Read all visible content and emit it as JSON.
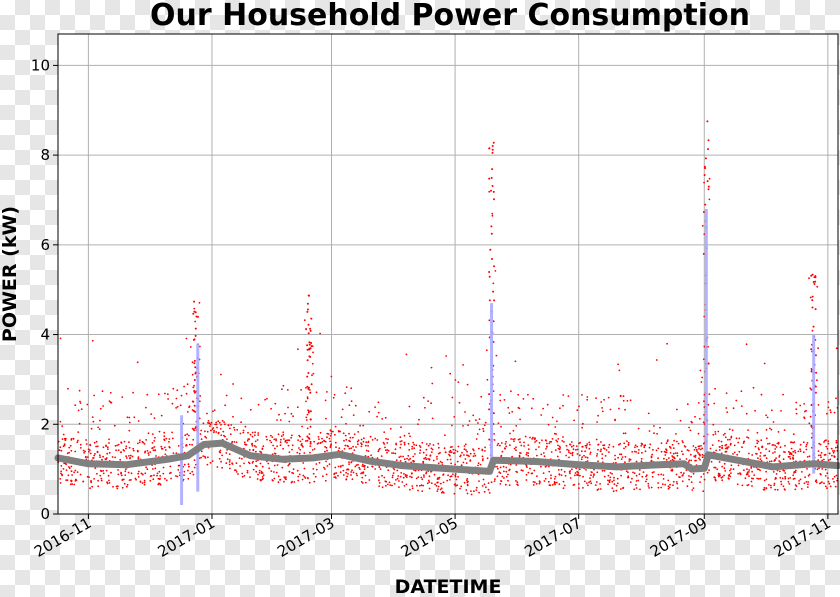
{
  "chart_data": {
    "type": "scatter",
    "title": "Our Household Power Consumption",
    "xlabel": "DATETIME",
    "ylabel": "POWER (kW)",
    "xlim": [
      "2016-10-17",
      "2017-11-06"
    ],
    "ylim": [
      0,
      10.7
    ],
    "grid": true,
    "xticks": [
      "2016-11",
      "2017-01",
      "2017-03",
      "2017-05",
      "2017-07",
      "2017-09",
      "2017-11"
    ],
    "xtick_dates": [
      "2016-11-01",
      "2017-01-01",
      "2017-03-01",
      "2017-05-01",
      "2017-07-01",
      "2017-09-01",
      "2017-11-01"
    ],
    "yticks": [
      0,
      2,
      4,
      6,
      8,
      10
    ],
    "series": [
      {
        "marker": "dots",
        "color": "#ff0000",
        "typical_band_kW": [
          0.5,
          2.0
        ],
        "spikes": [
          {
            "date": "2016-12-24",
            "peak_kW": 4.8
          },
          {
            "date": "2017-02-18",
            "peak_kW": 4.9
          },
          {
            "date": "2017-05-19",
            "peak_kW": 8.3
          },
          {
            "date": "2017-09-02",
            "peak_kW": 8.9
          },
          {
            "date": "2017-10-25",
            "peak_kW": 5.4
          }
        ]
      },
      {
        "marker": "line",
        "color": "#aaaaff",
        "segments": [
          {
            "date": "2016-12-17",
            "low_kW": 0.2,
            "high_kW": 2.2
          },
          {
            "date": "2016-12-25",
            "low_kW": 0.5,
            "high_kW": 3.8
          },
          {
            "date": "2017-05-19",
            "low_kW": 0.9,
            "high_kW": 4.7
          },
          {
            "date": "2017-09-02",
            "low_kW": 1.0,
            "high_kW": 6.8
          },
          {
            "date": "2017-10-25",
            "low_kW": 0.9,
            "high_kW": 4.0
          }
        ]
      },
      {
        "marker": "thick-line",
        "color": "#808080",
        "points": [
          [
            "2016-10-17",
            1.25
          ],
          [
            "2016-11-01",
            1.12
          ],
          [
            "2016-11-20",
            1.1
          ],
          [
            "2016-12-10",
            1.22
          ],
          [
            "2016-12-20",
            1.3
          ],
          [
            "2016-12-28",
            1.55
          ],
          [
            "2017-01-06",
            1.58
          ],
          [
            "2017-01-20",
            1.3
          ],
          [
            "2017-02-05",
            1.22
          ],
          [
            "2017-02-20",
            1.25
          ],
          [
            "2017-03-05",
            1.33
          ],
          [
            "2017-03-20",
            1.18
          ],
          [
            "2017-04-05",
            1.08
          ],
          [
            "2017-05-01",
            1.0
          ],
          [
            "2017-05-18",
            0.95
          ],
          [
            "2017-05-20",
            1.2
          ],
          [
            "2017-06-10",
            1.17
          ],
          [
            "2017-07-01",
            1.1
          ],
          [
            "2017-07-20",
            1.05
          ],
          [
            "2017-08-10",
            1.1
          ],
          [
            "2017-08-22",
            1.12
          ],
          [
            "2017-08-26",
            1.0
          ],
          [
            "2017-09-01",
            1.02
          ],
          [
            "2017-09-03",
            1.32
          ],
          [
            "2017-09-15",
            1.22
          ],
          [
            "2017-10-05",
            1.05
          ],
          [
            "2017-10-25",
            1.12
          ],
          [
            "2017-11-06",
            1.08
          ]
        ]
      }
    ]
  }
}
